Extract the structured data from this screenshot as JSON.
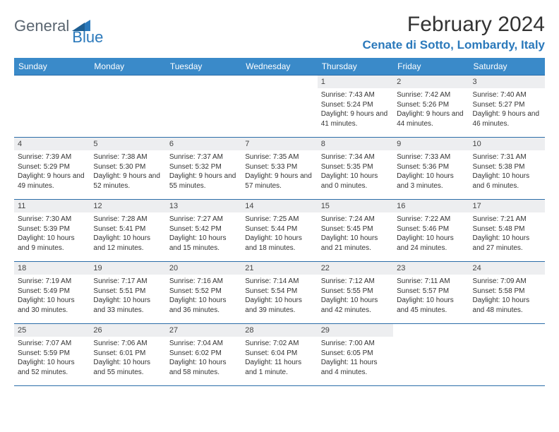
{
  "logo": {
    "part1": "General",
    "part2": "Blue"
  },
  "title": "February 2024",
  "location": "Cenate di Sotto, Lombardy, Italy",
  "colors": {
    "header_bg": "#3a8ac9",
    "accent": "#2b79bb",
    "border": "#2b6da8",
    "daynum_bg": "#edeef0",
    "text": "#333333",
    "logo_gray": "#5a6570"
  },
  "weekdays": [
    "Sunday",
    "Monday",
    "Tuesday",
    "Wednesday",
    "Thursday",
    "Friday",
    "Saturday"
  ],
  "weeks": [
    [
      null,
      null,
      null,
      null,
      {
        "d": "1",
        "sr": "7:43 AM",
        "ss": "5:24 PM",
        "dl": "9 hours and 41 minutes."
      },
      {
        "d": "2",
        "sr": "7:42 AM",
        "ss": "5:26 PM",
        "dl": "9 hours and 44 minutes."
      },
      {
        "d": "3",
        "sr": "7:40 AM",
        "ss": "5:27 PM",
        "dl": "9 hours and 46 minutes."
      }
    ],
    [
      {
        "d": "4",
        "sr": "7:39 AM",
        "ss": "5:29 PM",
        "dl": "9 hours and 49 minutes."
      },
      {
        "d": "5",
        "sr": "7:38 AM",
        "ss": "5:30 PM",
        "dl": "9 hours and 52 minutes."
      },
      {
        "d": "6",
        "sr": "7:37 AM",
        "ss": "5:32 PM",
        "dl": "9 hours and 55 minutes."
      },
      {
        "d": "7",
        "sr": "7:35 AM",
        "ss": "5:33 PM",
        "dl": "9 hours and 57 minutes."
      },
      {
        "d": "8",
        "sr": "7:34 AM",
        "ss": "5:35 PM",
        "dl": "10 hours and 0 minutes."
      },
      {
        "d": "9",
        "sr": "7:33 AM",
        "ss": "5:36 PM",
        "dl": "10 hours and 3 minutes."
      },
      {
        "d": "10",
        "sr": "7:31 AM",
        "ss": "5:38 PM",
        "dl": "10 hours and 6 minutes."
      }
    ],
    [
      {
        "d": "11",
        "sr": "7:30 AM",
        "ss": "5:39 PM",
        "dl": "10 hours and 9 minutes."
      },
      {
        "d": "12",
        "sr": "7:28 AM",
        "ss": "5:41 PM",
        "dl": "10 hours and 12 minutes."
      },
      {
        "d": "13",
        "sr": "7:27 AM",
        "ss": "5:42 PM",
        "dl": "10 hours and 15 minutes."
      },
      {
        "d": "14",
        "sr": "7:25 AM",
        "ss": "5:44 PM",
        "dl": "10 hours and 18 minutes."
      },
      {
        "d": "15",
        "sr": "7:24 AM",
        "ss": "5:45 PM",
        "dl": "10 hours and 21 minutes."
      },
      {
        "d": "16",
        "sr": "7:22 AM",
        "ss": "5:46 PM",
        "dl": "10 hours and 24 minutes."
      },
      {
        "d": "17",
        "sr": "7:21 AM",
        "ss": "5:48 PM",
        "dl": "10 hours and 27 minutes."
      }
    ],
    [
      {
        "d": "18",
        "sr": "7:19 AM",
        "ss": "5:49 PM",
        "dl": "10 hours and 30 minutes."
      },
      {
        "d": "19",
        "sr": "7:17 AM",
        "ss": "5:51 PM",
        "dl": "10 hours and 33 minutes."
      },
      {
        "d": "20",
        "sr": "7:16 AM",
        "ss": "5:52 PM",
        "dl": "10 hours and 36 minutes."
      },
      {
        "d": "21",
        "sr": "7:14 AM",
        "ss": "5:54 PM",
        "dl": "10 hours and 39 minutes."
      },
      {
        "d": "22",
        "sr": "7:12 AM",
        "ss": "5:55 PM",
        "dl": "10 hours and 42 minutes."
      },
      {
        "d": "23",
        "sr": "7:11 AM",
        "ss": "5:57 PM",
        "dl": "10 hours and 45 minutes."
      },
      {
        "d": "24",
        "sr": "7:09 AM",
        "ss": "5:58 PM",
        "dl": "10 hours and 48 minutes."
      }
    ],
    [
      {
        "d": "25",
        "sr": "7:07 AM",
        "ss": "5:59 PM",
        "dl": "10 hours and 52 minutes."
      },
      {
        "d": "26",
        "sr": "7:06 AM",
        "ss": "6:01 PM",
        "dl": "10 hours and 55 minutes."
      },
      {
        "d": "27",
        "sr": "7:04 AM",
        "ss": "6:02 PM",
        "dl": "10 hours and 58 minutes."
      },
      {
        "d": "28",
        "sr": "7:02 AM",
        "ss": "6:04 PM",
        "dl": "11 hours and 1 minute."
      },
      {
        "d": "29",
        "sr": "7:00 AM",
        "ss": "6:05 PM",
        "dl": "11 hours and 4 minutes."
      },
      null,
      null
    ]
  ],
  "labels": {
    "sunrise": "Sunrise: ",
    "sunset": "Sunset: ",
    "daylight": "Daylight: "
  }
}
